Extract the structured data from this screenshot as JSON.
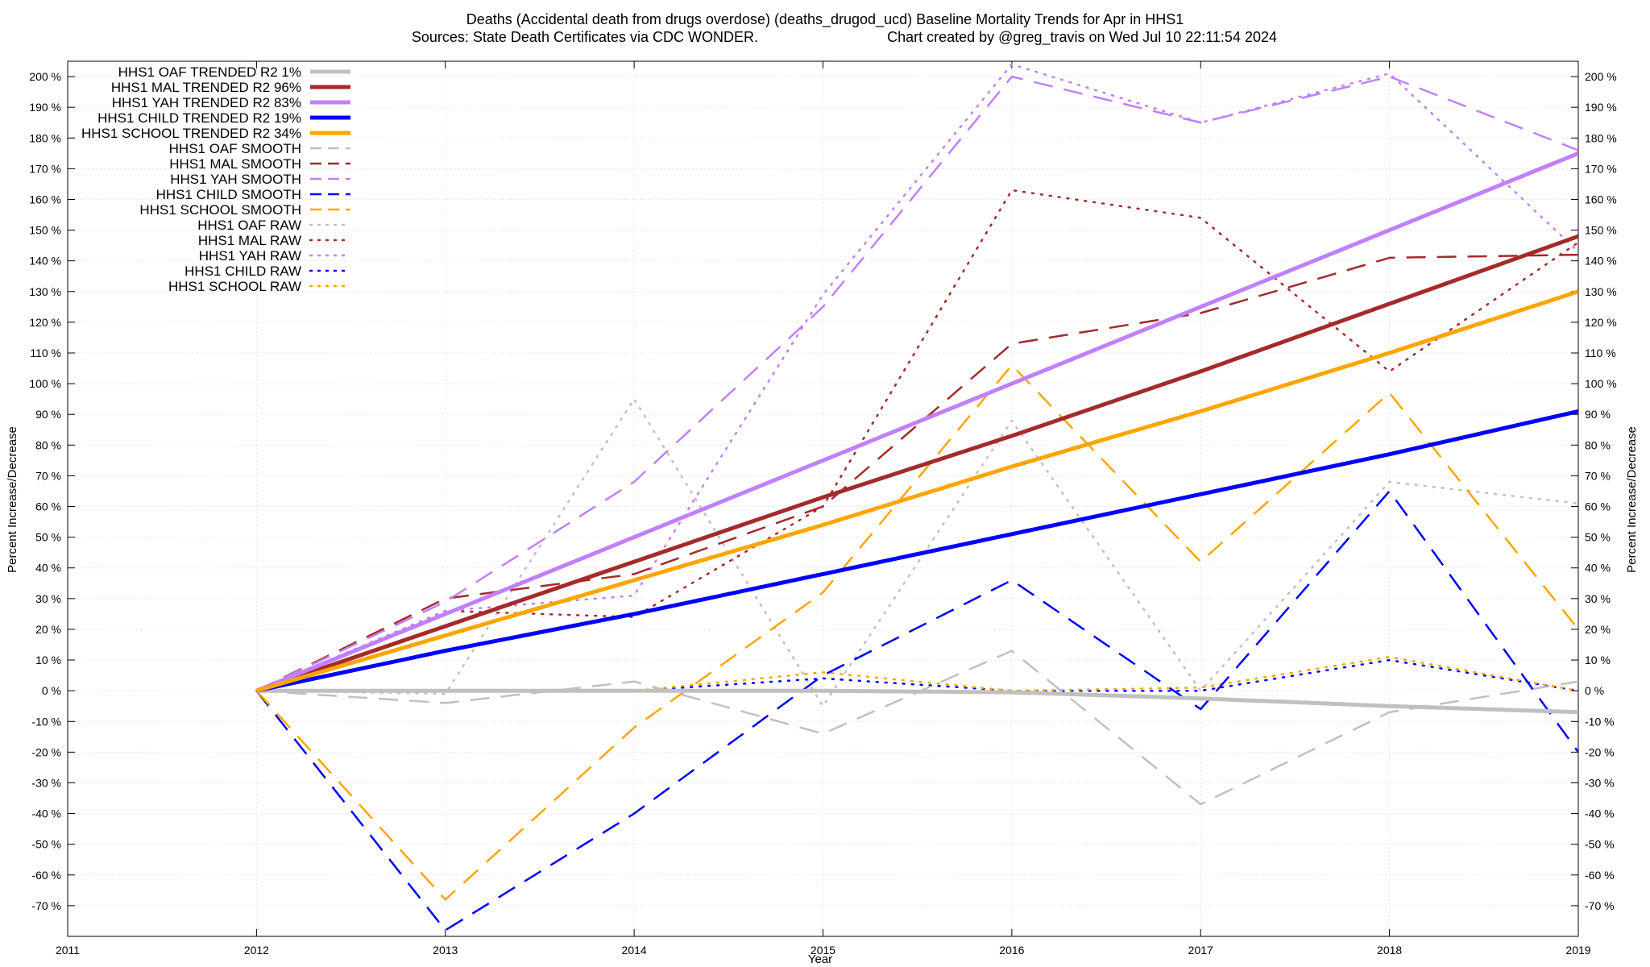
{
  "chart_data": {
    "type": "line",
    "title": "Deaths (Accidental death from drugs overdose) (deaths_drugod_ucd)  Baseline Mortality Trends for Apr in HHS1",
    "subtitle_left": "Sources: State Death Certificates via CDC WONDER.",
    "subtitle_right": "Chart created by @greg_travis on Wed Jul 10 22:11:54 2024",
    "xlabel": "Year",
    "ylabel": "Percent Increase/Decrease",
    "ylabel_right": "Percent Increase/Decrease",
    "xlim": [
      2011,
      2019
    ],
    "ylim": [
      -80,
      205
    ],
    "x_ticks": [
      2011,
      2012,
      2013,
      2014,
      2015,
      2016,
      2017,
      2018,
      2019
    ],
    "y_ticks": [
      -70,
      -60,
      -50,
      -40,
      -30,
      -20,
      -10,
      0,
      10,
      20,
      30,
      40,
      50,
      60,
      70,
      80,
      90,
      100,
      110,
      120,
      130,
      140,
      150,
      160,
      170,
      180,
      190,
      200
    ],
    "y_tick_suffix": " %",
    "grid": true,
    "legend_position": "top-left",
    "x": [
      2012,
      2013,
      2014,
      2015,
      2016,
      2017,
      2018,
      2019
    ],
    "series": [
      {
        "name": "HHS1 OAF TRENDED R2  1%",
        "style": "solid",
        "color": "#c0c0c0",
        "values": [
          0,
          0,
          0,
          0,
          -0.5,
          -2.5,
          -5,
          -7
        ]
      },
      {
        "name": "HHS1 MAL TRENDED R2  96%",
        "style": "solid",
        "color": "#a52a2a",
        "values": [
          0,
          21,
          42,
          63,
          83,
          104,
          126,
          148
        ]
      },
      {
        "name": "HHS1 YAH TRENDED R2  83%",
        "style": "solid",
        "color": "#c080ff",
        "values": [
          0,
          25,
          50,
          75,
          100,
          125,
          150,
          175
        ]
      },
      {
        "name": "HHS1 CHILD TRENDED R2  19%",
        "style": "solid",
        "color": "#0000ff",
        "values": [
          0,
          13,
          25,
          38,
          51,
          64,
          77,
          91
        ]
      },
      {
        "name": "HHS1 SCHOOL TRENDED R2  34%",
        "style": "solid",
        "color": "#ffa500",
        "values": [
          0,
          18,
          36,
          54,
          73,
          91,
          110,
          130
        ]
      },
      {
        "name": "HHS1 OAF SMOOTH",
        "style": "dashed",
        "color": "#c0c0c0",
        "values": [
          0,
          -4,
          3,
          -14,
          13,
          -37,
          -7,
          3
        ]
      },
      {
        "name": "HHS1 MAL SMOOTH",
        "style": "dashed",
        "color": "#a52a2a",
        "values": [
          0,
          30,
          38,
          60,
          113,
          123,
          141,
          142
        ]
      },
      {
        "name": "HHS1 YAH SMOOTH",
        "style": "dashed",
        "color": "#c080ff",
        "values": [
          0,
          29,
          68,
          125,
          200,
          185,
          200,
          176
        ]
      },
      {
        "name": "HHS1 CHILD SMOOTH",
        "style": "dashed",
        "color": "#0000ff",
        "values": [
          0,
          -78,
          -40,
          5,
          36,
          -6,
          65,
          -20
        ]
      },
      {
        "name": "HHS1 SCHOOL SMOOTH",
        "style": "dashed",
        "color": "#ffa500",
        "values": [
          0,
          -68,
          -12,
          32,
          106,
          42,
          97,
          20
        ]
      },
      {
        "name": "HHS1 OAF RAW",
        "style": "dotted",
        "color": "#c0c0c0",
        "values": [
          0,
          -1,
          95,
          -5,
          88,
          0,
          68,
          61
        ]
      },
      {
        "name": "HHS1 MAL RAW",
        "style": "dotted",
        "color": "#a52a2a",
        "values": [
          0,
          26,
          24,
          60,
          163,
          154,
          104,
          146
        ]
      },
      {
        "name": "HHS1 YAH RAW",
        "style": "dotted",
        "color": "#c080ff",
        "values": [
          0,
          26,
          31,
          129,
          204,
          185,
          201,
          143
        ]
      },
      {
        "name": "HHS1 CHILD RAW",
        "style": "dotted",
        "color": "#0000ff",
        "values": [
          0,
          0,
          0,
          4,
          0,
          0,
          10,
          0
        ]
      },
      {
        "name": "HHS1 SCHOOL RAW",
        "style": "dotted",
        "color": "#ffa500",
        "values": [
          0,
          0,
          0,
          6,
          0,
          1,
          11,
          0
        ]
      }
    ]
  }
}
